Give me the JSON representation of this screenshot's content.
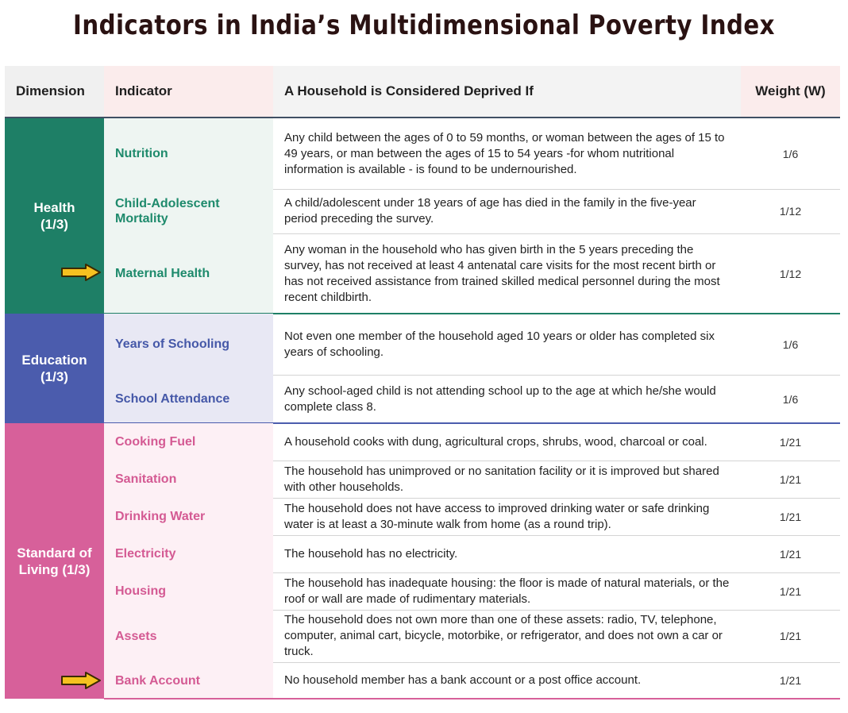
{
  "title": "Indicators in India’s Multidimensional Poverty Index",
  "columns": {
    "dimension": "Dimension",
    "indicator": "Indicator",
    "condition": "A Household is Considered Deprived If",
    "weight": "Weight (W)"
  },
  "colors": {
    "health": "#1e7f66",
    "health_bg": "#eef5f2",
    "health_text": "#1e8a6c",
    "education": "#4b5cad",
    "education_bg": "#e8e8f4",
    "education_text": "#4558a8",
    "living": "#d7609a",
    "living_bg": "#fdf0f5",
    "living_text": "#d45a93",
    "highlight_arrow": "#f5c120"
  },
  "dimensions": [
    {
      "label": "Health\n(1/3)"
    },
    {
      "label": "Education\n(1/3)"
    },
    {
      "label": "Standard of\nLiving (1/3)"
    }
  ],
  "rows": [
    {
      "indicator": "Nutrition",
      "condition": "Any child between the ages of 0 to 59 months, or woman between the ages of 15 to 49 years, or man between the ages of 15 to 54 years -for whom nutritional information is available - is found to be undernourished.",
      "weight": "1/6",
      "highlighted": false
    },
    {
      "indicator": "Child-Adolescent Mortality",
      "condition": "A child/adolescent under 18 years of age has died in the family in the five-year period preceding the survey.",
      "weight": "1/12",
      "highlighted": false
    },
    {
      "indicator": "Maternal Health",
      "condition": "Any woman in the household who has given birth in the 5 years preceding the survey, has not received at least 4 antenatal care visits for the most recent birth or has not received assistance from trained skilled medical personnel during the most recent childbirth.",
      "weight": "1/12",
      "highlighted": true
    },
    {
      "indicator": "Years of Schooling",
      "condition": "Not even one member of the household aged 10 years or older has completed six years of schooling.",
      "weight": "1/6",
      "highlighted": false
    },
    {
      "indicator": "School Attendance",
      "condition": "Any school-aged child is not attending school up to the age at which he/she would complete class 8.",
      "weight": "1/6",
      "highlighted": false
    },
    {
      "indicator": "Cooking Fuel",
      "condition": "A household cooks with dung, agricultural crops, shrubs,  wood, charcoal or coal.",
      "weight": "1/21",
      "highlighted": false
    },
    {
      "indicator": "Sanitation",
      "condition": "The household has unimproved or no sanitation facility or it is improved but shared with other households.",
      "weight": "1/21",
      "highlighted": false
    },
    {
      "indicator": "Drinking Water",
      "condition": "The household does not have access to improved drinking water or safe drinking water is at least a 30-minute walk from home (as a round trip).",
      "weight": "1/21",
      "highlighted": false
    },
    {
      "indicator": "Electricity",
      "condition": "The household has no electricity.",
      "weight": "1/21",
      "highlighted": false
    },
    {
      "indicator": "Housing",
      "condition": "The household has inadequate housing: the floor is made of natural materials, or the roof or wall are made of rudimentary materials.",
      "weight": "1/21",
      "highlighted": false
    },
    {
      "indicator": "Assets",
      "condition": "The household does not own more than one of these assets: radio, TV, telephone, computer, animal cart, bicycle, motorbike, or refrigerator, and does not own a car or truck.",
      "weight": "1/21",
      "highlighted": false
    },
    {
      "indicator": "Bank Account",
      "condition": "No household member has a bank account or a post office account.",
      "weight": "1/21",
      "highlighted": true
    }
  ]
}
